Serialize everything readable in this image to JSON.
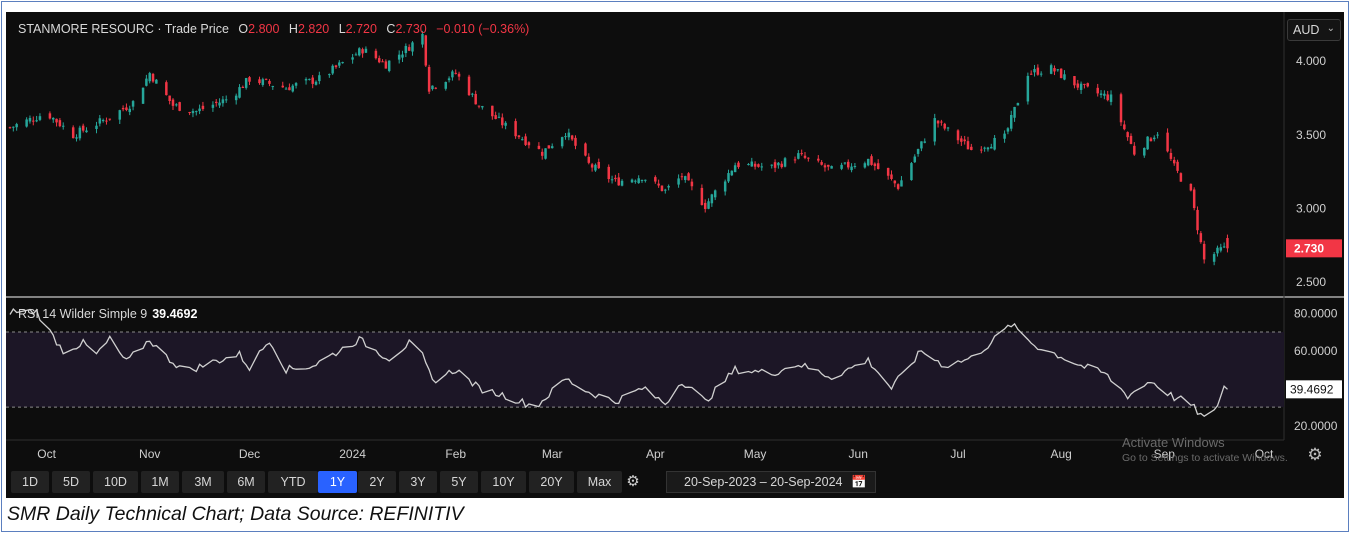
{
  "header": {
    "symbol": "STANMORE RESOURC · Trade Price",
    "o_label": "O",
    "o_value": "2.800",
    "h_label": "H",
    "h_value": "2.820",
    "l_label": "L",
    "l_value": "2.720",
    "c_label": "C",
    "c_value": "2.730",
    "change": "−0.010 (−0.36%)"
  },
  "currency": "AUD",
  "rsi_header": {
    "label": "RSI 14 Wilder Simple 9",
    "value": "39.4692"
  },
  "watermark": {
    "line1": "Activate Windows",
    "line2": "Go to Settings to activate Windows."
  },
  "toolbar": {
    "ranges": [
      "1D",
      "5D",
      "10D",
      "1M",
      "3M",
      "6M",
      "YTD",
      "1Y",
      "2Y",
      "3Y",
      "5Y",
      "10Y",
      "20Y",
      "Max"
    ],
    "active": "1Y",
    "date_from": "20-Sep-2023",
    "date_sep": "–",
    "date_to": "20-Sep-2024"
  },
  "caption": "SMR Daily Technical Chart; Data Source: REFINITIV",
  "colors": {
    "up": "#26a69a",
    "down": "#f23645",
    "bg": "#0d0d0d",
    "rsi_line": "#d0d0d0",
    "rsi_band": "#1c1626"
  },
  "chart_data": [
    {
      "type": "candlestick",
      "title": "STANMORE RESOURC · Trade Price",
      "currency": "AUD",
      "y_ticks": [
        "4.000",
        "3.500",
        "3.000",
        "2.500"
      ],
      "ylim": [
        2.42,
        4.28
      ],
      "last_price_label": "2.730",
      "x_ticks": [
        "Oct",
        "Nov",
        "Dec",
        "2024",
        "Feb",
        "Mar",
        "Apr",
        "May",
        "Jun",
        "Jul",
        "Aug",
        "Sep",
        "Oct"
      ],
      "x_range": [
        "2023-09-20",
        "2024-10-07"
      ],
      "close_anchors": [
        [
          "2023-09-20",
          3.55
        ],
        [
          "2023-10-01",
          3.65
        ],
        [
          "2023-10-09",
          3.5
        ],
        [
          "2023-10-20",
          3.62
        ],
        [
          "2023-10-27",
          3.72
        ],
        [
          "2023-11-01",
          3.92
        ],
        [
          "2023-11-08",
          3.7
        ],
        [
          "2023-11-15",
          3.66
        ],
        [
          "2023-11-25",
          3.75
        ],
        [
          "2023-12-01",
          3.88
        ],
        [
          "2023-12-12",
          3.82
        ],
        [
          "2023-12-22",
          3.88
        ],
        [
          "2024-01-04",
          4.08
        ],
        [
          "2024-01-11",
          3.98
        ],
        [
          "2024-01-18",
          4.1
        ],
        [
          "2024-01-22",
          4.18
        ],
        [
          "2024-01-24",
          3.82
        ],
        [
          "2024-02-01",
          3.92
        ],
        [
          "2024-02-08",
          3.7
        ],
        [
          "2024-02-16",
          3.56
        ],
        [
          "2024-02-27",
          3.38
        ],
        [
          "2024-03-05",
          3.52
        ],
        [
          "2024-03-12",
          3.3
        ],
        [
          "2024-03-20",
          3.18
        ],
        [
          "2024-03-28",
          3.22
        ],
        [
          "2024-04-04",
          3.12
        ],
        [
          "2024-04-09",
          3.22
        ],
        [
          "2024-04-16",
          3.02
        ],
        [
          "2024-04-25",
          3.3
        ],
        [
          "2024-05-06",
          3.28
        ],
        [
          "2024-05-14",
          3.36
        ],
        [
          "2024-05-24",
          3.26
        ],
        [
          "2024-06-04",
          3.33
        ],
        [
          "2024-06-13",
          3.15
        ],
        [
          "2024-06-24",
          3.6
        ],
        [
          "2024-07-05",
          3.4
        ],
        [
          "2024-07-15",
          3.48
        ],
        [
          "2024-07-22",
          3.92
        ],
        [
          "2024-07-29",
          3.95
        ],
        [
          "2024-08-07",
          3.82
        ],
        [
          "2024-08-16",
          3.75
        ],
        [
          "2024-08-23",
          3.38
        ],
        [
          "2024-08-30",
          3.52
        ],
        [
          "2024-09-04",
          3.28
        ],
        [
          "2024-09-09",
          3.1
        ],
        [
          "2024-09-13",
          2.65
        ],
        [
          "2024-09-18",
          2.72
        ],
        [
          "2024-09-20",
          2.73
        ]
      ]
    },
    {
      "type": "line",
      "title": "RSI 14 Wilder Simple 9",
      "y_ticks": [
        "80.0000",
        "60.0000",
        "20.0000"
      ],
      "ylim": [
        13,
        86
      ],
      "band": [
        30,
        70
      ],
      "last_value_label": "39.4692",
      "x_range": [
        "2023-09-20",
        "2024-10-07"
      ],
      "anchors": [
        [
          "2023-09-20",
          81
        ],
        [
          "2023-09-28",
          81
        ],
        [
          "2023-10-02",
          70
        ],
        [
          "2023-10-06",
          60
        ],
        [
          "2023-10-12",
          64
        ],
        [
          "2023-10-16",
          58
        ],
        [
          "2023-10-20",
          66
        ],
        [
          "2023-10-25",
          54
        ],
        [
          "2023-11-01",
          66
        ],
        [
          "2023-11-05",
          58
        ],
        [
          "2023-11-12",
          49
        ],
        [
          "2023-11-20",
          54
        ],
        [
          "2023-11-28",
          58
        ],
        [
          "2023-12-01",
          51
        ],
        [
          "2023-12-07",
          66
        ],
        [
          "2023-12-12",
          50
        ],
        [
          "2023-12-20",
          52
        ],
        [
          "2024-01-03",
          66
        ],
        [
          "2024-01-08",
          60
        ],
        [
          "2024-01-12",
          56
        ],
        [
          "2024-01-18",
          64
        ],
        [
          "2024-01-22",
          57
        ],
        [
          "2024-01-25",
          44
        ],
        [
          "2024-02-01",
          50
        ],
        [
          "2024-02-08",
          40
        ],
        [
          "2024-02-16",
          36
        ],
        [
          "2024-02-25",
          30
        ],
        [
          "2024-03-05",
          45
        ],
        [
          "2024-03-12",
          38
        ],
        [
          "2024-03-20",
          33
        ],
        [
          "2024-03-28",
          40
        ],
        [
          "2024-04-04",
          32
        ],
        [
          "2024-04-09",
          44
        ],
        [
          "2024-04-16",
          33
        ],
        [
          "2024-04-25",
          50
        ],
        [
          "2024-05-06",
          48
        ],
        [
          "2024-05-14",
          53
        ],
        [
          "2024-05-24",
          46
        ],
        [
          "2024-06-04",
          55
        ],
        [
          "2024-06-11",
          40
        ],
        [
          "2024-06-20",
          60
        ],
        [
          "2024-06-27",
          52
        ],
        [
          "2024-07-05",
          56
        ],
        [
          "2024-07-10",
          63
        ],
        [
          "2024-07-17",
          74
        ],
        [
          "2024-07-24",
          63
        ],
        [
          "2024-08-01",
          57
        ],
        [
          "2024-08-07",
          52
        ],
        [
          "2024-08-14",
          48
        ],
        [
          "2024-08-21",
          36
        ],
        [
          "2024-08-28",
          44
        ],
        [
          "2024-09-04",
          35
        ],
        [
          "2024-09-08",
          33
        ],
        [
          "2024-09-13",
          24
        ],
        [
          "2024-09-16",
          27
        ],
        [
          "2024-09-19",
          41
        ],
        [
          "2024-09-20",
          39.47
        ]
      ]
    }
  ]
}
